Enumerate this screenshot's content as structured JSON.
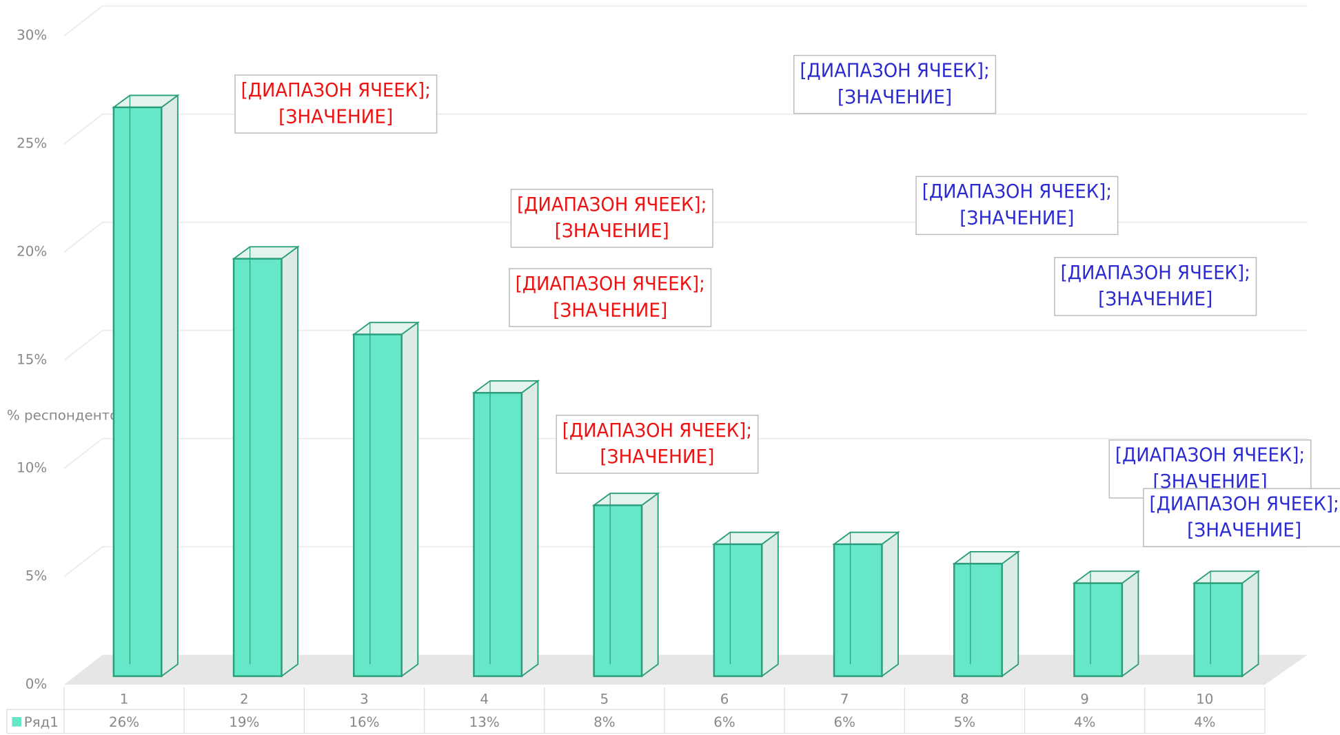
{
  "chart_data": {
    "type": "bar3d",
    "y_label": "% респондентов",
    "categories": [
      "1",
      "2",
      "3",
      "4",
      "5",
      "6",
      "7",
      "8",
      "9",
      "10"
    ],
    "series": [
      {
        "name": "Ряд1",
        "color": "#66e8c8",
        "values": [
          26.3,
          19.3,
          15.8,
          13.1,
          7.9,
          6.1,
          6.1,
          5.2,
          4.3,
          4.3
        ],
        "value_labels": [
          "26%",
          "19%",
          "16%",
          "13%",
          "8%",
          "6%",
          "6%",
          "5%",
          "4%",
          "4%"
        ]
      }
    ],
    "ylim": [
      0,
      30
    ],
    "yticks": [
      {
        "value": 0,
        "label": "0%"
      },
      {
        "value": 5,
        "label": "5%"
      },
      {
        "value": 10,
        "label": "10%"
      },
      {
        "value": 15,
        "label": "15%"
      },
      {
        "value": 20,
        "label": "20%"
      },
      {
        "value": 25,
        "label": "25%"
      },
      {
        "value": 30,
        "label": "30%"
      }
    ],
    "grid": true,
    "annotations": [
      {
        "lines": [
          "[ДИАПАЗОН ЯЧЕЕК];",
          "[ЗНАЧЕНИЕ]"
        ],
        "color": "#ee1111"
      },
      {
        "lines": [
          "[ДИАПАЗОН ЯЧЕЕК];",
          "[ЗНАЧЕНИЕ]"
        ],
        "color": "#ee1111"
      },
      {
        "lines": [
          "[ДИАПАЗОН ЯЧЕЕК];",
          "[ЗНАЧЕНИЕ]"
        ],
        "color": "#ee1111"
      },
      {
        "lines": [
          "[ДИАПАЗОН ЯЧЕЕК];",
          "[ЗНАЧЕНИЕ]"
        ],
        "color": "#ee1111"
      },
      {
        "lines": [
          "[ДИАПАЗОН ЯЧЕЕК];",
          "[ЗНАЧЕНИЕ]"
        ],
        "color": "#2a2ad0"
      },
      {
        "lines": [
          "[ДИАПАЗОН ЯЧЕЕК];",
          "[ЗНАЧЕНИЕ]"
        ],
        "color": "#2a2ad0"
      },
      {
        "lines": [
          "[ДИАПАЗОН ЯЧЕЕК];",
          "[ЗНАЧЕНИЕ]"
        ],
        "color": "#2a2ad0"
      },
      {
        "lines": [
          "[ДИАПАЗОН ЯЧЕЕК];",
          "[ЗНАЧЕНИЕ]"
        ],
        "color": "#2a2ad0"
      },
      {
        "lines": [
          "[ДИАПАЗОН ЯЧЕЕК];",
          "[ЗНАЧЕНИЕ]"
        ],
        "color": "#2a2ad0"
      }
    ]
  }
}
